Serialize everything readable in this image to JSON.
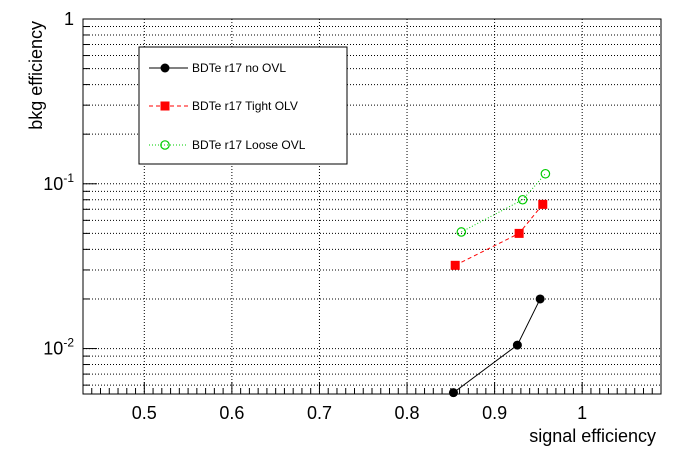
{
  "chart_data": {
    "type": "line",
    "xlabel": "signal efficiency",
    "ylabel": "bkg efficiency",
    "xlim": [
      0.43,
      1.09
    ],
    "ylim": [
      0.0053,
      1
    ],
    "yscale": "log",
    "grid": true,
    "legend_placement": "top-left",
    "x_ticks": [
      {
        "value": 0.5,
        "label": "0.5"
      },
      {
        "value": 0.6,
        "label": "0.6"
      },
      {
        "value": 0.7,
        "label": "0.7"
      },
      {
        "value": 0.8,
        "label": "0.8"
      },
      {
        "value": 0.9,
        "label": "0.9"
      },
      {
        "value": 1.0,
        "label": "1"
      }
    ],
    "y_ticks": [
      {
        "value": 0.01,
        "base": "10",
        "exp": "-2",
        "plain": ""
      },
      {
        "value": 0.1,
        "base": "10",
        "exp": "-1",
        "plain": ""
      },
      {
        "value": 1,
        "base": "",
        "exp": "",
        "plain": "1"
      }
    ],
    "series": [
      {
        "name": "BDTe r17 no OVL",
        "color": "#000000",
        "marker": "filled-circle",
        "line": "solid",
        "x": [
          0.853,
          0.926,
          0.952
        ],
        "y": [
          0.0054,
          0.0105,
          0.02
        ]
      },
      {
        "name": "BDTe r17 Tight OLV",
        "color": "#ff0000",
        "marker": "filled-square",
        "line": "dashed",
        "x": [
          0.855,
          0.928,
          0.955
        ],
        "y": [
          0.032,
          0.05,
          0.075
        ]
      },
      {
        "name": "BDTe r17 Loose OVL",
        "color": "#00cc00",
        "marker": "open-circle",
        "line": "dotted",
        "x": [
          0.862,
          0.932,
          0.958
        ],
        "y": [
          0.051,
          0.08,
          0.115
        ]
      }
    ]
  }
}
